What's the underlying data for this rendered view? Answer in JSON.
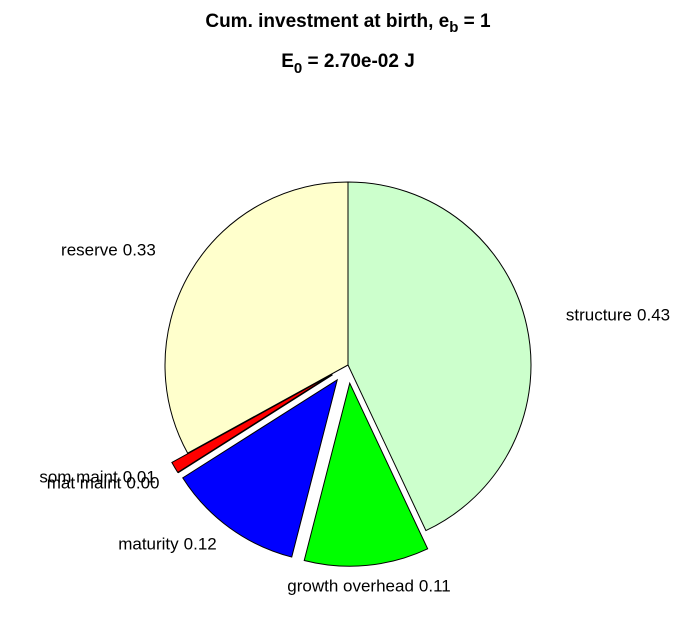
{
  "chart_data": {
    "type": "pie",
    "title": [
      "Cum. investment at birth, e",
      "b",
      " = 1"
    ],
    "subtitle": [
      "E",
      "0",
      " = 2.70e-02 J"
    ],
    "categories": [
      "structure",
      "growth overhead",
      "maturity",
      "mat maint",
      "som maint",
      "reserve"
    ],
    "values": [
      0.43,
      0.11,
      0.12,
      0.0,
      0.01,
      0.33
    ],
    "value_labels": [
      "0.43",
      "0.11",
      "0.12",
      "0.00",
      "0.01",
      "0.33"
    ],
    "colors": [
      "#ccffcc",
      "#00ff00",
      "#0000ff",
      "#000000",
      "#ff0000",
      "#ffffcc"
    ],
    "explode": [
      false,
      true,
      true,
      true,
      true,
      false
    ]
  }
}
